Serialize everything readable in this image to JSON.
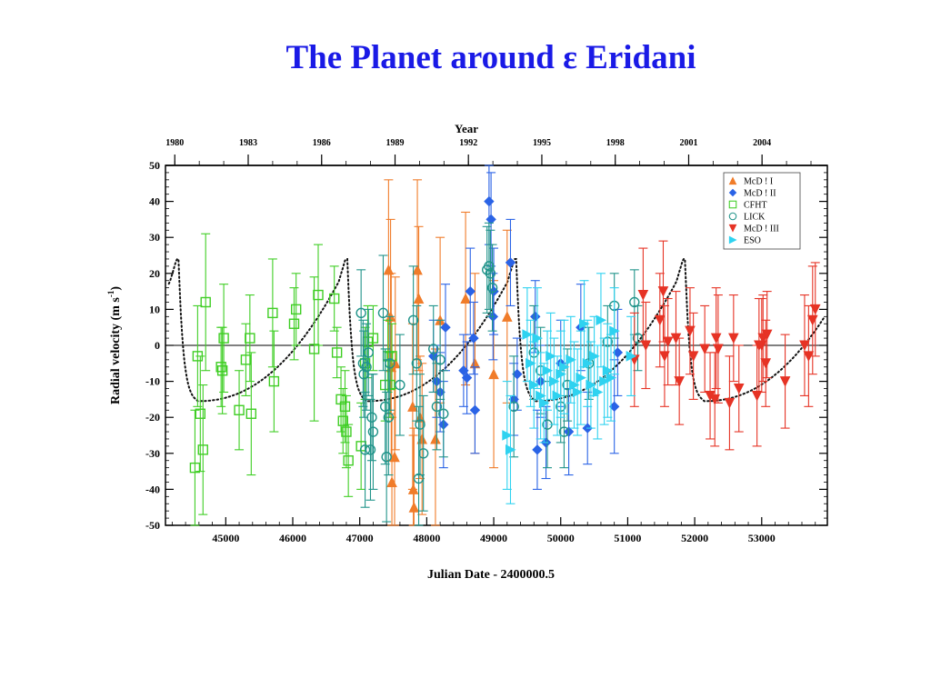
{
  "slide": {
    "title": "The Planet around ε Eridani"
  },
  "chart_data": {
    "type": "scatter",
    "title": "The Planet around ε Eridani",
    "xlabel": "Julian Date - 2400000.5",
    "ylabel": "Radial velocity (m s",
    "ylabel_exp": "-1",
    "ylabel_close": ")",
    "top_axis_label": "Year",
    "xlim": [
      44100,
      53980
    ],
    "ylim": [
      -50,
      50
    ],
    "x_ticks": [
      45000,
      46000,
      47000,
      48000,
      49000,
      50000,
      51000,
      52000,
      53000
    ],
    "x_tick_labels": [
      "45000",
      "46000",
      "47000",
      "48000",
      "49000",
      "50000",
      "51000",
      "52000",
      "53000"
    ],
    "y_ticks": [
      -50,
      -40,
      -30,
      -20,
      -10,
      0,
      10,
      20,
      30,
      40,
      50
    ],
    "y_tick_labels": [
      "-50",
      "-40",
      "-30",
      "-20",
      "-10",
      "0",
      "10",
      "20",
      "30",
      "40",
      "50"
    ],
    "year_ticks": [
      44239,
      45335,
      46431,
      47527,
      48622,
      49718,
      50814,
      51910,
      53005
    ],
    "year_tick_labels": [
      "1980",
      "1983",
      "1986",
      "1989",
      "1992",
      "1995",
      "1998",
      "2001",
      "2004"
    ],
    "legend_position": "top-right",
    "zero_line": true,
    "series": [
      {
        "name": "McD ! I",
        "color": "#f07c2a",
        "marker": "triangle-up",
        "points": [
          [
            47430,
            21,
            25
          ],
          [
            47460,
            8,
            27
          ],
          [
            47470,
            -6,
            26
          ],
          [
            47480,
            -38,
            18
          ],
          [
            47520,
            -31,
            25
          ],
          [
            47530,
            -5,
            24
          ],
          [
            47790,
            -17,
            23
          ],
          [
            47800,
            -40,
            15
          ],
          [
            47810,
            -45,
            22
          ],
          [
            47860,
            21,
            25
          ],
          [
            47880,
            13,
            20
          ],
          [
            47900,
            -20,
            17
          ],
          [
            47930,
            -26,
            21
          ],
          [
            48130,
            -26,
            25
          ],
          [
            48200,
            7,
            23
          ],
          [
            48580,
            13,
            24
          ],
          [
            48720,
            -5,
            25
          ],
          [
            49000,
            -8,
            26
          ],
          [
            49200,
            8,
            24
          ]
        ]
      },
      {
        "name": "McD ! II",
        "color": "#2a63e6",
        "marker": "diamond",
        "points": [
          [
            48100,
            -3,
            10
          ],
          [
            48150,
            -10,
            10
          ],
          [
            48200,
            -13,
            11
          ],
          [
            48250,
            -22,
            12
          ],
          [
            48280,
            5,
            12
          ],
          [
            48550,
            -7,
            10
          ],
          [
            48600,
            -9,
            10
          ],
          [
            48650,
            15,
            12
          ],
          [
            48700,
            2,
            10
          ],
          [
            48720,
            -18,
            12
          ],
          [
            48930,
            40,
            12
          ],
          [
            48960,
            35,
            13
          ],
          [
            48990,
            8,
            12
          ],
          [
            49000,
            15,
            12
          ],
          [
            49250,
            23,
            12
          ],
          [
            49300,
            -15,
            10
          ],
          [
            49350,
            -8,
            10
          ],
          [
            49620,
            8,
            10
          ],
          [
            49650,
            -29,
            11
          ],
          [
            49700,
            -10,
            10
          ],
          [
            49780,
            -27,
            10
          ],
          [
            50000,
            -5,
            12
          ],
          [
            50120,
            -24,
            12
          ],
          [
            50300,
            5,
            12
          ],
          [
            50400,
            -23,
            10
          ],
          [
            50800,
            -17,
            13
          ],
          [
            50850,
            -2,
            12
          ]
        ]
      },
      {
        "name": "CFHT",
        "color": "#3fce24",
        "marker": "square",
        "points": [
          [
            44540,
            -34,
            16
          ],
          [
            44580,
            -3,
            14
          ],
          [
            44620,
            -19,
            16
          ],
          [
            44660,
            -29,
            18
          ],
          [
            44700,
            12,
            19
          ],
          [
            44930,
            -6,
            11
          ],
          [
            44950,
            -7,
            12
          ],
          [
            44970,
            2,
            15
          ],
          [
            45200,
            -18,
            11
          ],
          [
            45300,
            -4,
            10
          ],
          [
            45360,
            2,
            12
          ],
          [
            45380,
            -19,
            17
          ],
          [
            45700,
            9,
            15
          ],
          [
            45720,
            -10,
            14
          ],
          [
            46020,
            6,
            10
          ],
          [
            46050,
            10,
            10
          ],
          [
            46320,
            -1,
            20
          ],
          [
            46380,
            14,
            14
          ],
          [
            46620,
            13,
            9
          ],
          [
            46660,
            -2,
            7
          ],
          [
            46720,
            -15,
            9
          ],
          [
            46750,
            -21,
            9
          ],
          [
            46780,
            -17,
            10
          ],
          [
            46800,
            -24,
            10
          ],
          [
            46830,
            -32,
            10
          ],
          [
            47020,
            -28,
            12
          ],
          [
            47080,
            -5,
            10
          ],
          [
            47120,
            1,
            10
          ],
          [
            47200,
            2,
            9
          ],
          [
            47380,
            -11,
            10
          ],
          [
            47420,
            -3,
            10
          ],
          [
            47450,
            -11,
            9
          ],
          [
            47480,
            -3,
            9
          ]
        ]
      },
      {
        "name": "LICK",
        "color": "#21948a",
        "marker": "circle",
        "points": [
          [
            47020,
            9,
            12
          ],
          [
            47050,
            -5,
            12
          ],
          [
            47060,
            -8,
            12
          ],
          [
            47080,
            -29,
            16
          ],
          [
            47100,
            -6,
            12
          ],
          [
            47130,
            -2,
            12
          ],
          [
            47160,
            -29,
            14
          ],
          [
            47180,
            -20,
            12
          ],
          [
            47200,
            -24,
            16
          ],
          [
            47350,
            9,
            16
          ],
          [
            47380,
            -17,
            16
          ],
          [
            47400,
            -31,
            18
          ],
          [
            47430,
            -20,
            16
          ],
          [
            47450,
            -5,
            13
          ],
          [
            47600,
            -11,
            14
          ],
          [
            47800,
            7,
            15
          ],
          [
            47850,
            -5,
            16
          ],
          [
            47880,
            -37,
            20
          ],
          [
            47900,
            -22,
            14
          ],
          [
            47950,
            -30,
            16
          ],
          [
            48100,
            -1,
            12
          ],
          [
            48150,
            -17,
            12
          ],
          [
            48200,
            -4,
            11
          ],
          [
            48250,
            -19,
            12
          ],
          [
            48900,
            21,
            12
          ],
          [
            48930,
            22,
            12
          ],
          [
            48950,
            20,
            12
          ],
          [
            48980,
            16,
            12
          ],
          [
            49300,
            -17,
            14
          ],
          [
            49600,
            -2,
            13
          ],
          [
            49700,
            -7,
            12
          ],
          [
            49800,
            -22,
            12
          ],
          [
            50000,
            -17,
            10
          ],
          [
            50050,
            -24,
            10
          ],
          [
            50100,
            -11,
            10
          ],
          [
            50420,
            -5,
            10
          ],
          [
            50700,
            1,
            10
          ],
          [
            50800,
            11,
            9
          ],
          [
            51100,
            12,
            9
          ],
          [
            51150,
            2,
            9
          ]
        ]
      },
      {
        "name": "McD ! III",
        "color": "#e63325",
        "marker": "triangle-down",
        "points": [
          [
            51100,
            -4,
            13
          ],
          [
            51230,
            14,
            13
          ],
          [
            51270,
            0,
            12
          ],
          [
            51480,
            7,
            13
          ],
          [
            51530,
            15,
            14
          ],
          [
            51550,
            -3,
            14
          ],
          [
            51600,
            1,
            12
          ],
          [
            51720,
            2,
            13
          ],
          [
            51770,
            -10,
            12
          ],
          [
            51930,
            4,
            12
          ],
          [
            51980,
            -3,
            12
          ],
          [
            52150,
            -1,
            12
          ],
          [
            52230,
            -14,
            12
          ],
          [
            52300,
            -15,
            13
          ],
          [
            52320,
            2,
            14
          ],
          [
            52350,
            -1,
            15
          ],
          [
            52520,
            -16,
            13
          ],
          [
            52580,
            2,
            12
          ],
          [
            52660,
            -12,
            12
          ],
          [
            52930,
            -14,
            14
          ],
          [
            52960,
            0,
            13
          ],
          [
            53000,
            0,
            13
          ],
          [
            53020,
            2,
            12
          ],
          [
            53060,
            -5,
            12
          ],
          [
            53080,
            3,
            12
          ],
          [
            53350,
            -10,
            13
          ],
          [
            53640,
            0,
            14
          ],
          [
            53700,
            -3,
            14
          ],
          [
            53760,
            7,
            15
          ],
          [
            53800,
            10,
            13
          ]
        ]
      },
      {
        "name": "ESO",
        "color": "#2fd2f0",
        "marker": "triangle-right",
        "points": [
          [
            49200,
            -25,
            15
          ],
          [
            49250,
            -29,
            15
          ],
          [
            49500,
            3,
            13
          ],
          [
            49550,
            -5,
            12
          ],
          [
            49600,
            -11,
            12
          ],
          [
            49650,
            2,
            14
          ],
          [
            49700,
            -14,
            12
          ],
          [
            49750,
            -16,
            11
          ],
          [
            49800,
            -7,
            11
          ],
          [
            49850,
            -3,
            12
          ],
          [
            49900,
            -10,
            12
          ],
          [
            49950,
            -14,
            11
          ],
          [
            50000,
            -8,
            12
          ],
          [
            50050,
            -6,
            13
          ],
          [
            50150,
            -4,
            12
          ],
          [
            50200,
            -11,
            12
          ],
          [
            50250,
            -13,
            12
          ],
          [
            50300,
            -9,
            13
          ],
          [
            50350,
            6,
            12
          ],
          [
            50400,
            -5,
            12
          ],
          [
            50450,
            -11,
            12
          ],
          [
            50500,
            -3,
            11
          ],
          [
            50550,
            -13,
            13
          ],
          [
            50600,
            7,
            13
          ],
          [
            50650,
            -10,
            12
          ],
          [
            50700,
            -7,
            13
          ],
          [
            50750,
            -9,
            12
          ],
          [
            50800,
            4,
            12
          ],
          [
            51050,
            -3,
            11
          ]
        ]
      }
    ]
  }
}
